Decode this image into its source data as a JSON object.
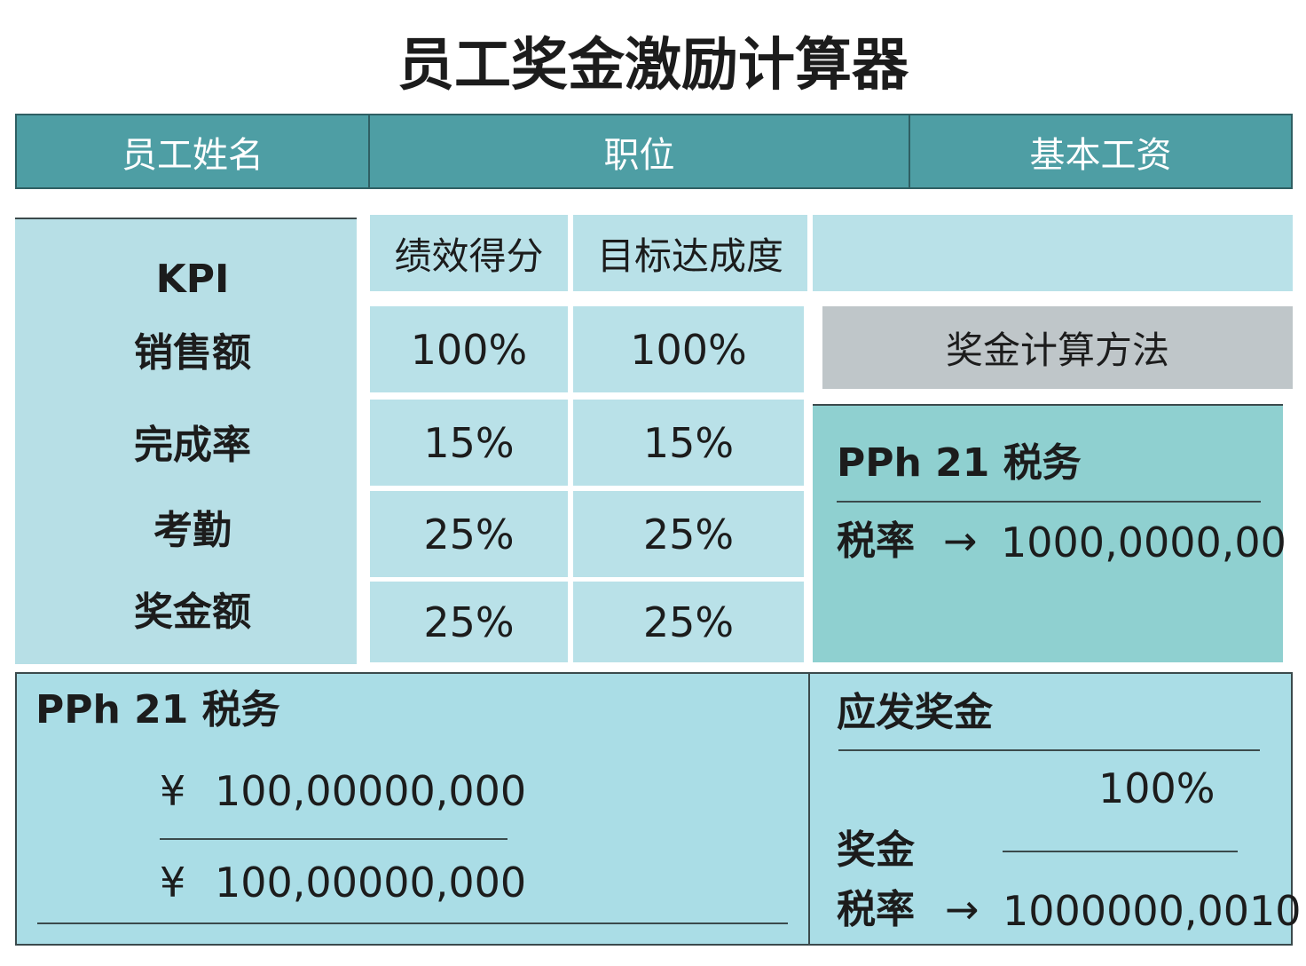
{
  "title": "员工奖金激励计算器",
  "header": {
    "cols": [
      "员工姓名",
      "职位",
      "基本工资"
    ]
  },
  "kpi": {
    "labels": [
      "KPI",
      "销售额",
      "完成率",
      "考勤",
      "奖金额"
    ],
    "columns": [
      "绩效得分",
      "目标达成度"
    ],
    "rows": [
      [
        "100%",
        "100%"
      ],
      [
        "15%",
        "15%"
      ],
      [
        "25%",
        "25%"
      ],
      [
        "25%",
        "25%"
      ]
    ]
  },
  "method": {
    "title": "奖金计算方法",
    "tax_title": "PPh 21 税务",
    "tax_rate_label": "税率",
    "arrow": "→",
    "tax_rate_value": "1000,0000,00"
  },
  "summary": {
    "tax": {
      "title": "PPh 21 税务",
      "currency": "¥",
      "amounts": [
        "100,00000,000",
        "100,00000,000"
      ]
    },
    "payout": {
      "title": "应发奖金",
      "percent": "100%",
      "bonus_label": "奖金",
      "tax_rate_label": "税率",
      "arrow": "→",
      "tax_rate_value": "1000000,0010"
    }
  }
}
